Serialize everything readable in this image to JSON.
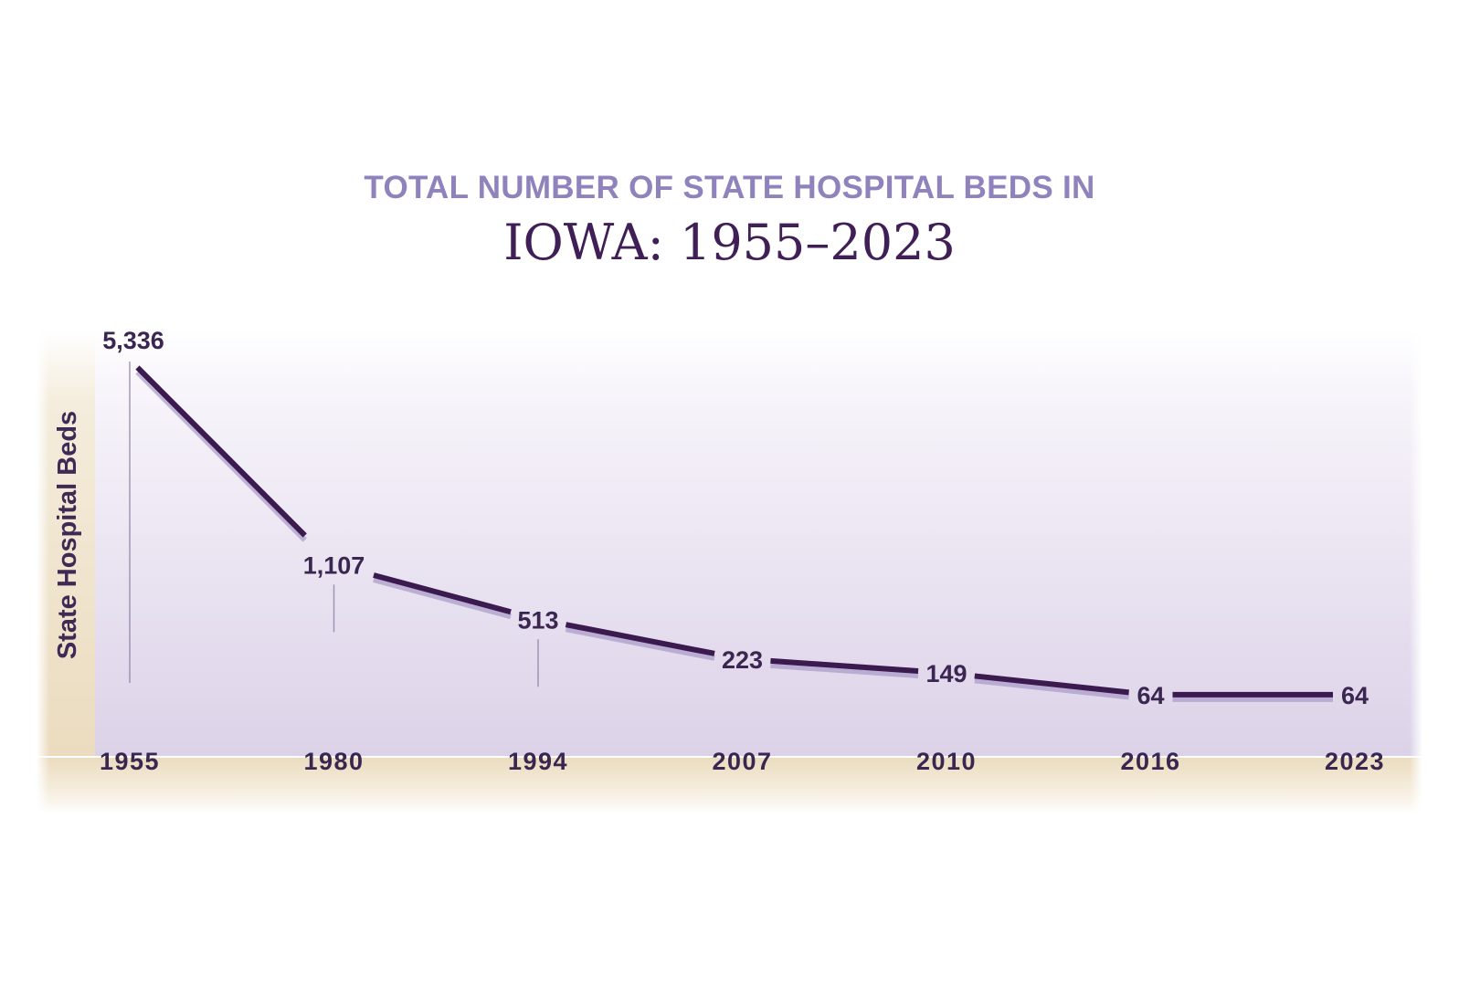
{
  "title_line1": "TOTAL NUMBER OF STATE HOSPITAL BEDS IN",
  "title_line2": "IOWA: 1955–2023",
  "colors": {
    "line": "#3b1a4f",
    "line_shadow": "#a898c8",
    "title_accent": "#8f82bd",
    "title_main": "#3f1f56",
    "axis_band": "#eee2c8"
  },
  "chart_data": {
    "type": "line",
    "title": "TOTAL NUMBER OF STATE HOSPITAL BEDS IN IOWA: 1955–2023",
    "xlabel": "",
    "ylabel": "State Hospital Beds",
    "categories": [
      "1955",
      "1980",
      "1994",
      "2007",
      "2010",
      "2016",
      "2023"
    ],
    "series": [
      {
        "values": [
          5336,
          1107,
          513,
          223,
          149,
          64,
          64
        ]
      }
    ],
    "data_labels": [
      "5,336",
      "1,107",
      "513",
      "223",
      "149",
      "64",
      "64"
    ],
    "ylim": [
      0,
      5336
    ],
    "grid": false,
    "legend": "none"
  }
}
